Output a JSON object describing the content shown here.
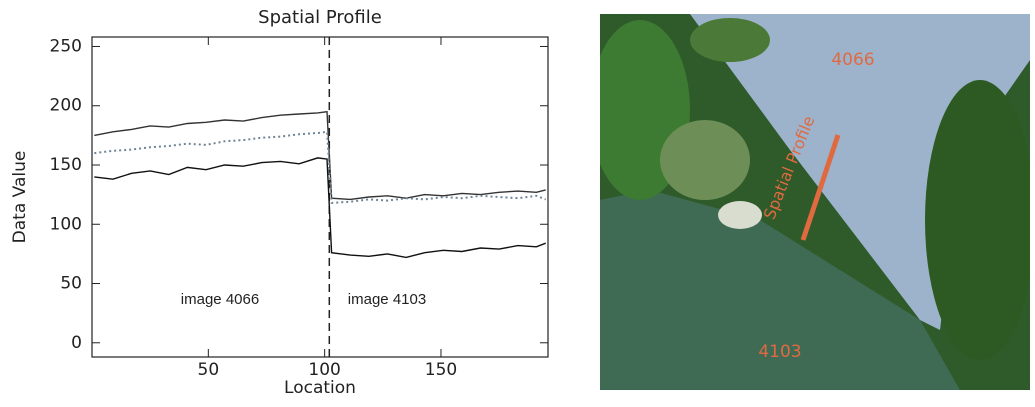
{
  "chart_data": {
    "type": "line",
    "title": "Spatial Profile",
    "x_label": "Location",
    "y_label": "Data Value",
    "x": [
      1,
      9,
      17,
      25,
      33,
      41,
      49,
      57,
      65,
      73,
      81,
      89,
      97,
      101,
      103,
      111,
      119,
      127,
      135,
      143,
      151,
      159,
      167,
      175,
      183,
      191,
      195
    ],
    "series": [
      {
        "color": "#333333",
        "dash": "solid",
        "values": [
          175,
          178,
          180,
          183,
          182,
          185,
          186,
          188,
          187,
          190,
          192,
          193,
          194,
          195,
          122,
          121,
          123,
          124,
          122,
          125,
          124,
          126,
          125,
          127,
          128,
          127,
          129
        ]
      },
      {
        "color": "#6f8596",
        "dash": "dotted",
        "values": [
          160,
          162,
          163,
          165,
          166,
          168,
          167,
          170,
          171,
          173,
          174,
          176,
          177,
          178,
          118,
          119,
          121,
          120,
          122,
          121,
          123,
          122,
          124,
          123,
          122,
          124,
          121
        ]
      },
      {
        "color": "#111111",
        "dash": "solid",
        "values": [
          140,
          138,
          143,
          145,
          142,
          148,
          146,
          150,
          149,
          152,
          153,
          151,
          156,
          155,
          76,
          74,
          73,
          75,
          72,
          76,
          78,
          77,
          80,
          79,
          82,
          81,
          84
        ]
      }
    ],
    "divider_x": 102,
    "annotations": [
      "image 4066",
      "image 4103"
    ],
    "xlim": [
      0,
      196
    ],
    "ylim": [
      -12,
      258
    ],
    "xticks": [
      50,
      100,
      150
    ],
    "yticks": [
      0,
      50,
      100,
      150,
      200,
      250
    ]
  },
  "photo": {
    "label_top": "4066",
    "label_bottom": "4103",
    "profile_label": "Spatial Profile"
  }
}
